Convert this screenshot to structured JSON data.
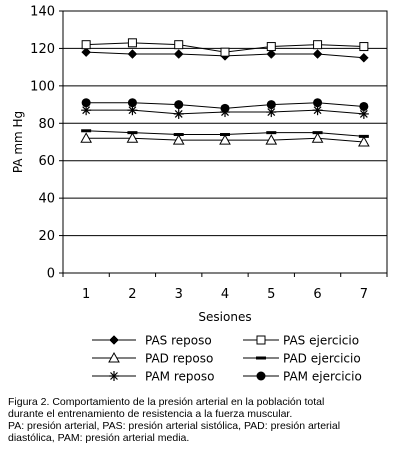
{
  "chart_data": {
    "type": "line",
    "ylabel": "PA mm Hg",
    "xlabel": "Sesiones",
    "ylim": [
      0,
      140
    ],
    "yticks": [
      "0",
      "20",
      "40",
      "60",
      "80",
      "100",
      "120",
      "140"
    ],
    "categories": [
      "1",
      "2",
      "3",
      "4",
      "5",
      "6",
      "7"
    ],
    "grid": "horizontal",
    "legend_position": "bottom",
    "series": [
      {
        "name": "PAS reposo",
        "marker": "diamond",
        "values": [
          118,
          117,
          117,
          116,
          117,
          117,
          115
        ]
      },
      {
        "name": "PAS ejercicio",
        "marker": "square-open",
        "values": [
          122,
          123,
          122,
          118,
          121,
          122,
          121
        ]
      },
      {
        "name": "PAD reposo",
        "marker": "triangle-open",
        "values": [
          72,
          72,
          71,
          71,
          71,
          72,
          70
        ]
      },
      {
        "name": "PAD ejercicio",
        "marker": "dash",
        "values": [
          76,
          75,
          74,
          74,
          75,
          75,
          73
        ]
      },
      {
        "name": "PAM reposo",
        "marker": "asterisk",
        "values": [
          87,
          87,
          85,
          86,
          86,
          87,
          85
        ]
      },
      {
        "name": "PAM ejercicio",
        "marker": "circle",
        "values": [
          91,
          91,
          90,
          88,
          90,
          91,
          89
        ]
      }
    ]
  },
  "caption": {
    "line1": "Figura 2. Comportamiento de la presión arterial en la población total",
    "line2": "durante el entrenamiento de resistencia a la fuerza muscular.",
    "line3": "PA: presión arterial, PAS: presión arterial sistólica, PAD: presión arterial",
    "line4": "diastólica, PAM: presión arterial media."
  }
}
